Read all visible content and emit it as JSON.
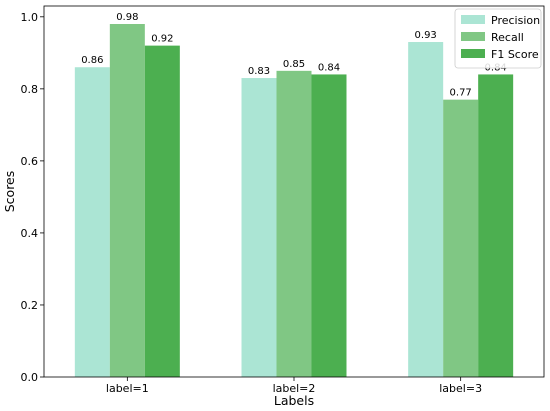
{
  "chart_data": {
    "type": "bar",
    "title": "",
    "xlabel": "Labels",
    "ylabel": "Scores",
    "categories": [
      "label=1",
      "label=2",
      "label=3"
    ],
    "ylim": [
      0,
      1.03
    ],
    "yticks": [
      "0.0",
      "0.2",
      "0.4",
      "0.6",
      "0.8",
      "1.0"
    ],
    "grid": false,
    "legend_position": "top-right",
    "series": [
      {
        "name": "Precision",
        "color": "#abe5d4",
        "values": [
          0.86,
          0.83,
          0.93
        ],
        "labels": [
          "0.86",
          "0.83",
          "0.93"
        ]
      },
      {
        "name": "Recall",
        "color": "#80c784",
        "values": [
          0.98,
          0.85,
          0.77
        ],
        "labels": [
          "0.98",
          "0.85",
          "0.77"
        ]
      },
      {
        "name": "F1 Score",
        "color": "#4caf50",
        "values": [
          0.92,
          0.84,
          0.84
        ],
        "labels": [
          "0.92",
          "0.84",
          "0.84"
        ]
      }
    ]
  }
}
